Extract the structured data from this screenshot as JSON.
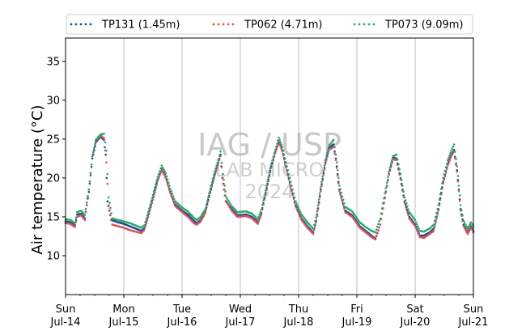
{
  "chart_data": {
    "type": "line",
    "title": "",
    "xlabel": "",
    "ylabel": "Air temperature (°C)",
    "ylim": [
      5,
      38
    ],
    "xlim": [
      0,
      7
    ],
    "yticks": [
      10,
      15,
      20,
      25,
      30,
      35
    ],
    "xticks": [
      {
        "x": 0,
        "day": "Sun",
        "date": "Jul-14"
      },
      {
        "x": 1,
        "day": "Mon",
        "date": "Jul-15"
      },
      {
        "x": 2,
        "day": "Tue",
        "date": "Jul-16"
      },
      {
        "x": 3,
        "day": "Wed",
        "date": "Jul-17"
      },
      {
        "x": 4,
        "day": "Thu",
        "date": "Jul-18"
      },
      {
        "x": 5,
        "day": "Fri",
        "date": "Jul-19"
      },
      {
        "x": 6,
        "day": "Sat",
        "date": "Jul-20"
      },
      {
        "x": 7,
        "day": "Sun",
        "date": "Jul-21"
      }
    ],
    "grid": "vertical",
    "legend_position": "top",
    "watermark": [
      "IAG / USP",
      "LAB MICRO",
      "2024"
    ],
    "series": [
      {
        "name": "TP131 (1.45m)",
        "color": "#1f4e8c",
        "points": [
          [
            0,
            14.4
          ],
          [
            0.08,
            14.3
          ],
          [
            0.16,
            13.9
          ],
          [
            0.2,
            15.3
          ],
          [
            0.27,
            15.4
          ],
          [
            0.33,
            14.8
          ],
          [
            0.4,
            18.2
          ],
          [
            0.46,
            22.5
          ],
          [
            0.52,
            24.6
          ],
          [
            0.6,
            25.3
          ],
          [
            0.66,
            24.9
          ],
          [
            0.69,
            23
          ],
          [
            0.72,
            17
          ],
          [
            0.78,
            14.6
          ],
          [
            0.9,
            14.3
          ],
          [
            1.0,
            14.1
          ],
          [
            1.1,
            13.8
          ],
          [
            1.2,
            13.5
          ],
          [
            1.3,
            13.2
          ],
          [
            1.35,
            13.5
          ],
          [
            1.42,
            15.3
          ],
          [
            1.5,
            17.5
          ],
          [
            1.58,
            19.8
          ],
          [
            1.65,
            21.2
          ],
          [
            1.72,
            20.2
          ],
          [
            1.8,
            18.2
          ],
          [
            1.88,
            16.6
          ],
          [
            2.0,
            15.8
          ],
          [
            2.1,
            15.3
          ],
          [
            2.2,
            14.5
          ],
          [
            2.25,
            14.2
          ],
          [
            2.32,
            14.6
          ],
          [
            2.4,
            15.7
          ],
          [
            2.48,
            18.2
          ],
          [
            2.56,
            20.5
          ],
          [
            2.62,
            22
          ],
          [
            2.66,
            23
          ],
          [
            2.69,
            20
          ],
          [
            2.75,
            17
          ],
          [
            2.85,
            16
          ],
          [
            2.95,
            15.2
          ],
          [
            3.1,
            15.3
          ],
          [
            3.2,
            15.0
          ],
          [
            3.3,
            14.3
          ],
          [
            3.36,
            15.5
          ],
          [
            3.45,
            18.7
          ],
          [
            3.53,
            21.5
          ],
          [
            3.6,
            23.3
          ],
          [
            3.66,
            24.8
          ],
          [
            3.72,
            23.6
          ],
          [
            3.8,
            21
          ],
          [
            3.88,
            18.5
          ],
          [
            3.95,
            16.5
          ],
          [
            4.05,
            14.8
          ],
          [
            4.15,
            13.8
          ],
          [
            4.25,
            13.0
          ],
          [
            4.3,
            14.5
          ],
          [
            4.38,
            18.5
          ],
          [
            4.46,
            22
          ],
          [
            4.52,
            23.8
          ],
          [
            4.6,
            24.3
          ],
          [
            4.64,
            22.5
          ],
          [
            4.7,
            18.5
          ],
          [
            4.8,
            15.8
          ],
          [
            4.92,
            15.2
          ],
          [
            5.05,
            13.8
          ],
          [
            5.15,
            13.2
          ],
          [
            5.25,
            12.6
          ],
          [
            5.32,
            12.2
          ],
          [
            5.4,
            14
          ],
          [
            5.48,
            17.5
          ],
          [
            5.55,
            20.5
          ],
          [
            5.62,
            22.6
          ],
          [
            5.68,
            22.5
          ],
          [
            5.75,
            20
          ],
          [
            5.82,
            17
          ],
          [
            5.9,
            15
          ],
          [
            6.0,
            14
          ],
          [
            6.08,
            12.6
          ],
          [
            6.15,
            12.6
          ],
          [
            6.25,
            13
          ],
          [
            6.32,
            13.5
          ],
          [
            6.4,
            16
          ],
          [
            6.48,
            19.5
          ],
          [
            6.56,
            21.8
          ],
          [
            6.62,
            23
          ],
          [
            6.67,
            23.6
          ],
          [
            6.72,
            21
          ],
          [
            6.78,
            16
          ],
          [
            6.83,
            14
          ],
          [
            6.9,
            13
          ],
          [
            6.96,
            13.8
          ],
          [
            7.0,
            13.2
          ]
        ]
      },
      {
        "name": "TP062 (4.71m)",
        "color": "#d9545e",
        "points": [
          [
            0,
            14.2
          ],
          [
            0.08,
            14.1
          ],
          [
            0.16,
            13.7
          ],
          [
            0.2,
            15.0
          ],
          [
            0.27,
            15.2
          ],
          [
            0.33,
            14.6
          ],
          [
            0.4,
            18.5
          ],
          [
            0.46,
            22.8
          ],
          [
            0.52,
            24.8
          ],
          [
            0.6,
            25.5
          ],
          [
            0.66,
            25.1
          ],
          [
            0.7,
            22
          ],
          [
            0.74,
            16.5
          ],
          [
            0.8,
            14.0
          ],
          [
            0.9,
            13.8
          ],
          [
            1.0,
            13.6
          ],
          [
            1.1,
            13.3
          ],
          [
            1.2,
            13.1
          ],
          [
            1.3,
            12.9
          ],
          [
            1.35,
            13.3
          ],
          [
            1.42,
            15.0
          ],
          [
            1.5,
            17.2
          ],
          [
            1.58,
            19.6
          ],
          [
            1.65,
            21.0
          ],
          [
            1.72,
            20.0
          ],
          [
            1.8,
            18.0
          ],
          [
            1.88,
            16.4
          ],
          [
            2.0,
            15.6
          ],
          [
            2.1,
            15.0
          ],
          [
            2.2,
            14.2
          ],
          [
            2.25,
            14.0
          ],
          [
            2.32,
            14.4
          ],
          [
            2.4,
            15.5
          ],
          [
            2.48,
            18.0
          ],
          [
            2.56,
            20.3
          ],
          [
            2.62,
            21.8
          ],
          [
            2.66,
            22.8
          ],
          [
            2.7,
            20
          ],
          [
            2.76,
            17
          ],
          [
            2.85,
            15.8
          ],
          [
            2.95,
            15.0
          ],
          [
            3.1,
            15.1
          ],
          [
            3.2,
            14.8
          ],
          [
            3.3,
            14.1
          ],
          [
            3.36,
            15.3
          ],
          [
            3.45,
            18.5
          ],
          [
            3.53,
            21.3
          ],
          [
            3.6,
            23.2
          ],
          [
            3.66,
            24.6
          ],
          [
            3.72,
            23.4
          ],
          [
            3.8,
            20.8
          ],
          [
            3.88,
            18.3
          ],
          [
            3.95,
            16.3
          ],
          [
            4.05,
            14.6
          ],
          [
            4.15,
            13.6
          ],
          [
            4.25,
            12.8
          ],
          [
            4.3,
            14.3
          ],
          [
            4.38,
            18.3
          ],
          [
            4.46,
            21.8
          ],
          [
            4.52,
            23.6
          ],
          [
            4.6,
            24.0
          ],
          [
            4.64,
            22.3
          ],
          [
            4.7,
            18.3
          ],
          [
            4.8,
            15.6
          ],
          [
            4.92,
            15.0
          ],
          [
            5.05,
            13.6
          ],
          [
            5.15,
            13.0
          ],
          [
            5.25,
            12.4
          ],
          [
            5.32,
            12.1
          ],
          [
            5.4,
            14.0
          ],
          [
            5.48,
            17.4
          ],
          [
            5.55,
            20.4
          ],
          [
            5.62,
            22.4
          ],
          [
            5.68,
            22.3
          ],
          [
            5.75,
            19.8
          ],
          [
            5.82,
            16.8
          ],
          [
            5.9,
            14.8
          ],
          [
            6.0,
            13.8
          ],
          [
            6.08,
            12.4
          ],
          [
            6.15,
            12.3
          ],
          [
            6.25,
            12.8
          ],
          [
            6.32,
            13.2
          ],
          [
            6.4,
            15.8
          ],
          [
            6.48,
            19.3
          ],
          [
            6.56,
            21.6
          ],
          [
            6.62,
            22.8
          ],
          [
            6.67,
            23.4
          ],
          [
            6.72,
            20.8
          ],
          [
            6.78,
            15.8
          ],
          [
            6.83,
            13.8
          ],
          [
            6.9,
            12.8
          ],
          [
            6.96,
            13.6
          ],
          [
            7.0,
            13.0
          ]
        ]
      },
      {
        "name": "TP073 (9.09m)",
        "color": "#2ca86a",
        "points": [
          [
            0,
            14.7
          ],
          [
            0.08,
            14.6
          ],
          [
            0.16,
            14.2
          ],
          [
            0.2,
            15.6
          ],
          [
            0.27,
            15.8
          ],
          [
            0.33,
            15.2
          ],
          [
            0.4,
            18.5
          ],
          [
            0.46,
            22.8
          ],
          [
            0.52,
            24.9
          ],
          [
            0.6,
            25.6
          ],
          [
            0.66,
            25.7
          ],
          [
            0.7,
            23.5
          ],
          [
            0.74,
            17.5
          ],
          [
            0.8,
            14.8
          ],
          [
            0.9,
            14.6
          ],
          [
            1.0,
            14.4
          ],
          [
            1.1,
            14.2
          ],
          [
            1.2,
            13.9
          ],
          [
            1.3,
            13.6
          ],
          [
            1.35,
            13.9
          ],
          [
            1.42,
            15.6
          ],
          [
            1.5,
            17.8
          ],
          [
            1.58,
            20.1
          ],
          [
            1.65,
            21.6
          ],
          [
            1.72,
            20.6
          ],
          [
            1.8,
            18.6
          ],
          [
            1.88,
            17.0
          ],
          [
            2.0,
            16.2
          ],
          [
            2.1,
            15.7
          ],
          [
            2.2,
            14.9
          ],
          [
            2.25,
            14.6
          ],
          [
            2.32,
            15.0
          ],
          [
            2.4,
            16.0
          ],
          [
            2.48,
            18.5
          ],
          [
            2.56,
            20.8
          ],
          [
            2.62,
            22.3
          ],
          [
            2.66,
            23.4
          ],
          [
            2.7,
            20.5
          ],
          [
            2.76,
            17.5
          ],
          [
            2.85,
            16.4
          ],
          [
            2.95,
            15.6
          ],
          [
            3.1,
            15.7
          ],
          [
            3.2,
            15.4
          ],
          [
            3.3,
            14.7
          ],
          [
            3.36,
            15.9
          ],
          [
            3.45,
            19.0
          ],
          [
            3.53,
            21.8
          ],
          [
            3.6,
            23.6
          ],
          [
            3.66,
            25.2
          ],
          [
            3.72,
            24.0
          ],
          [
            3.8,
            21.5
          ],
          [
            3.88,
            19.0
          ],
          [
            3.95,
            17.0
          ],
          [
            4.05,
            15.3
          ],
          [
            4.15,
            14.3
          ],
          [
            4.25,
            13.5
          ],
          [
            4.3,
            14.9
          ],
          [
            4.38,
            18.8
          ],
          [
            4.46,
            22.3
          ],
          [
            4.52,
            24.1
          ],
          [
            4.6,
            24.9
          ],
          [
            4.64,
            23.0
          ],
          [
            4.7,
            19.0
          ],
          [
            4.8,
            16.3
          ],
          [
            4.92,
            15.7
          ],
          [
            5.05,
            14.3
          ],
          [
            5.15,
            13.7
          ],
          [
            5.25,
            13.2
          ],
          [
            5.32,
            13.0
          ],
          [
            5.4,
            14.8
          ],
          [
            5.48,
            18.0
          ],
          [
            5.55,
            20.8
          ],
          [
            5.62,
            22.8
          ],
          [
            5.68,
            23.0
          ],
          [
            5.75,
            20.5
          ],
          [
            5.82,
            17.5
          ],
          [
            5.9,
            15.6
          ],
          [
            6.0,
            14.6
          ],
          [
            6.08,
            13.2
          ],
          [
            6.15,
            13.1
          ],
          [
            6.25,
            13.5
          ],
          [
            6.32,
            14.0
          ],
          [
            6.4,
            16.5
          ],
          [
            6.48,
            20.0
          ],
          [
            6.56,
            22.3
          ],
          [
            6.62,
            23.5
          ],
          [
            6.67,
            24.3
          ],
          [
            6.72,
            21.5
          ],
          [
            6.78,
            16.5
          ],
          [
            6.83,
            14.5
          ],
          [
            6.9,
            13.5
          ],
          [
            6.96,
            14.3
          ],
          [
            7.0,
            13.8
          ]
        ]
      }
    ]
  }
}
